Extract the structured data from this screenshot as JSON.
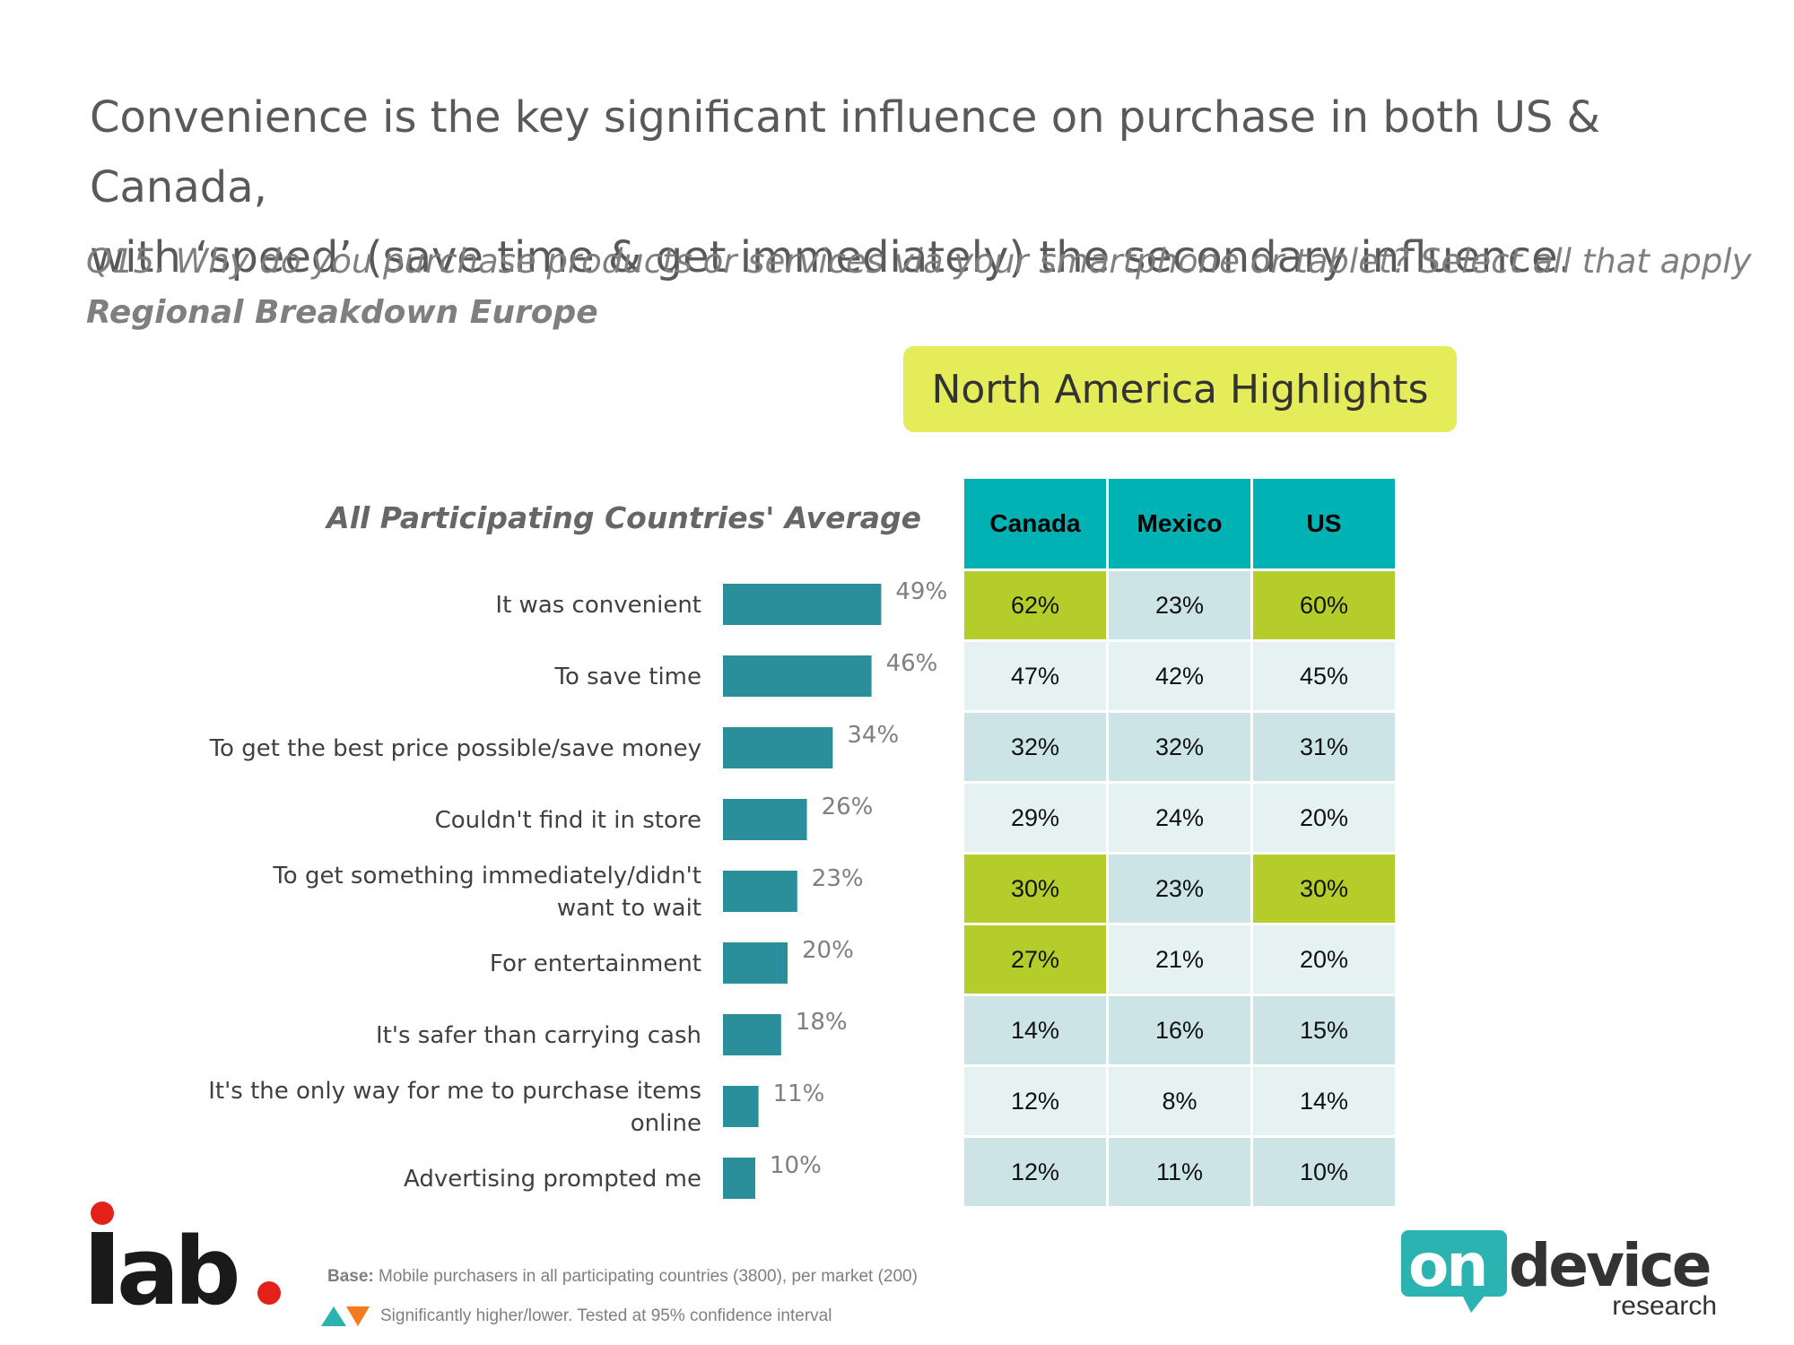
{
  "headline_line1": "Convenience is the key significant influence on purchase in both US & Canada,",
  "headline_line2": "with ‘speed’ (save time & get immediately) the secondary influence.",
  "question": "Q15. Why do you purchase products or services via your smartphone or tablet? Select all that apply",
  "region": "Regional Breakdown Europe",
  "highlights_badge": "North America Highlights",
  "colors": {
    "bar": "#2a8f9a",
    "header": "#00b2b4",
    "highlight": "#b4cd2a",
    "badge": "#e4ec5a"
  },
  "chart_data": {
    "type": "bar",
    "orientation": "horizontal",
    "title": "All Participating Countries' Average",
    "categories": [
      [
        "It was convenient"
      ],
      [
        "To save time"
      ],
      [
        "To get the best price possible/save money"
      ],
      [
        "Couldn't find it in store"
      ],
      [
        "To get something immediately/didn't",
        "want to wait"
      ],
      [
        "For entertainment"
      ],
      [
        "It's safer than carrying cash"
      ],
      [
        "It's the only way for me to purchase items",
        "online"
      ],
      [
        "Advertising prompted me"
      ]
    ],
    "values": [
      49,
      46,
      34,
      26,
      23,
      20,
      18,
      11,
      10
    ],
    "value_labels": [
      "49%",
      "46%",
      "34%",
      "26%",
      "23%",
      "20%",
      "18%",
      "11%",
      "10%"
    ],
    "xlim": [
      0,
      100
    ]
  },
  "table": {
    "headers": [
      "Canada",
      "Mexico",
      "US"
    ],
    "rows": [
      {
        "cells": [
          "62%",
          "23%",
          "60%"
        ],
        "highlight": [
          true,
          false,
          true
        ]
      },
      {
        "cells": [
          "47%",
          "42%",
          "45%"
        ],
        "highlight": [
          false,
          false,
          false
        ]
      },
      {
        "cells": [
          "32%",
          "32%",
          "31%"
        ],
        "highlight": [
          false,
          false,
          false
        ]
      },
      {
        "cells": [
          "29%",
          "24%",
          "20%"
        ],
        "highlight": [
          false,
          false,
          false
        ]
      },
      {
        "cells": [
          "30%",
          "23%",
          "30%"
        ],
        "highlight": [
          true,
          false,
          true
        ]
      },
      {
        "cells": [
          "27%",
          "21%",
          "20%"
        ],
        "highlight": [
          true,
          false,
          false
        ]
      },
      {
        "cells": [
          "14%",
          "16%",
          "15%"
        ],
        "highlight": [
          false,
          false,
          false
        ]
      },
      {
        "cells": [
          "12%",
          "8%",
          "14%"
        ],
        "highlight": [
          false,
          false,
          false
        ]
      },
      {
        "cells": [
          "12%",
          "11%",
          "10%"
        ],
        "highlight": [
          false,
          false,
          false
        ]
      }
    ]
  },
  "footer": {
    "base_label": "Base:",
    "base_text": "Mobile purchasers in all participating countries (3800), per market (200)",
    "sig_text": "Significantly higher/lower. Tested at 95% confidence interval"
  },
  "logos": {
    "iab": "iab.",
    "ondevice_on": "on",
    "ondevice_device": "device",
    "ondevice_research": "research"
  }
}
